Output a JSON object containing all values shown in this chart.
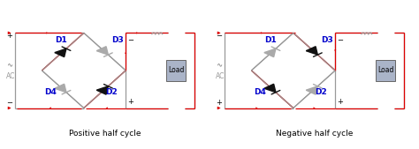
{
  "bg_color": "#ffffff",
  "wire_gray": "#999999",
  "wire_red": "#dd0000",
  "diode_active": "#111111",
  "diode_inactive": "#aaaaaa",
  "label_color": "#0000cc",
  "label_size": 6.5,
  "caption_size": 6.5,
  "pos_caption": "Positive half cycle",
  "neg_caption": "Negative half cycle",
  "load_label": "Load",
  "ac_label": "AC"
}
